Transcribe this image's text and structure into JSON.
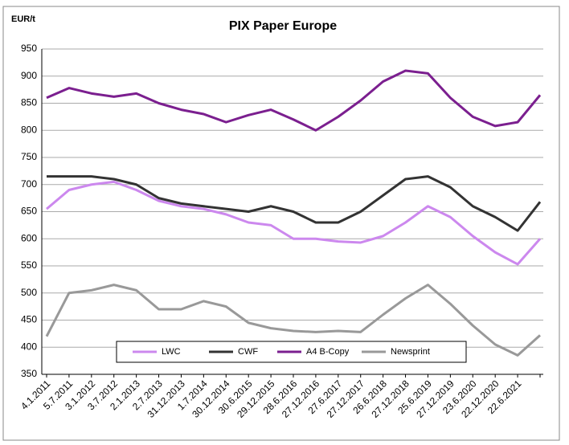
{
  "chart_data": {
    "type": "line",
    "title": "PIX Paper Europe",
    "y_label": "EUR/t",
    "categories": [
      "4.1.2011",
      "5.7.2011",
      "3.1.2012",
      "3.7.2012",
      "2.1.2013",
      "2.7.2013",
      "31.12.2013",
      "1.7.2014",
      "30.12.2014",
      "30.6.2015",
      "29.12.2015",
      "28.6.2016",
      "27.12.2016",
      "27.6.2017",
      "27.12.2017",
      "26.6.2018",
      "27.12.2018",
      "25.6.2019",
      "27.12.2019",
      "23.6.2020",
      "22.12.2020",
      "22.6.2021",
      null
    ],
    "series": [
      {
        "name": "LWC",
        "color": "#cc88ee",
        "values": [
          655,
          690,
          700,
          705,
          690,
          670,
          660,
          655,
          645,
          630,
          625,
          600,
          600,
          595,
          593,
          605,
          630,
          660,
          640,
          605,
          575,
          553,
          600
        ]
      },
      {
        "name": "CWF",
        "color": "#333333",
        "values": [
          715,
          715,
          715,
          710,
          700,
          675,
          665,
          660,
          655,
          650,
          660,
          650,
          630,
          630,
          650,
          680,
          710,
          715,
          695,
          660,
          640,
          615,
          668
        ]
      },
      {
        "name": "A4 B-Copy",
        "color": "#7b1f8f",
        "values": [
          860,
          878,
          868,
          862,
          868,
          850,
          838,
          830,
          815,
          828,
          838,
          820,
          800,
          825,
          855,
          890,
          910,
          905,
          860,
          825,
          808,
          815,
          865
        ]
      },
      {
        "name": "Newsprint",
        "color": "#999999",
        "values": [
          420,
          500,
          505,
          515,
          505,
          470,
          470,
          485,
          475,
          445,
          435,
          430,
          428,
          430,
          428,
          460,
          490,
          515,
          480,
          440,
          405,
          385,
          422
        ]
      }
    ],
    "ylim": [
      350,
      950
    ],
    "yticks": [
      350,
      400,
      450,
      500,
      550,
      600,
      650,
      700,
      750,
      800,
      850,
      900,
      950
    ],
    "grid": true
  }
}
